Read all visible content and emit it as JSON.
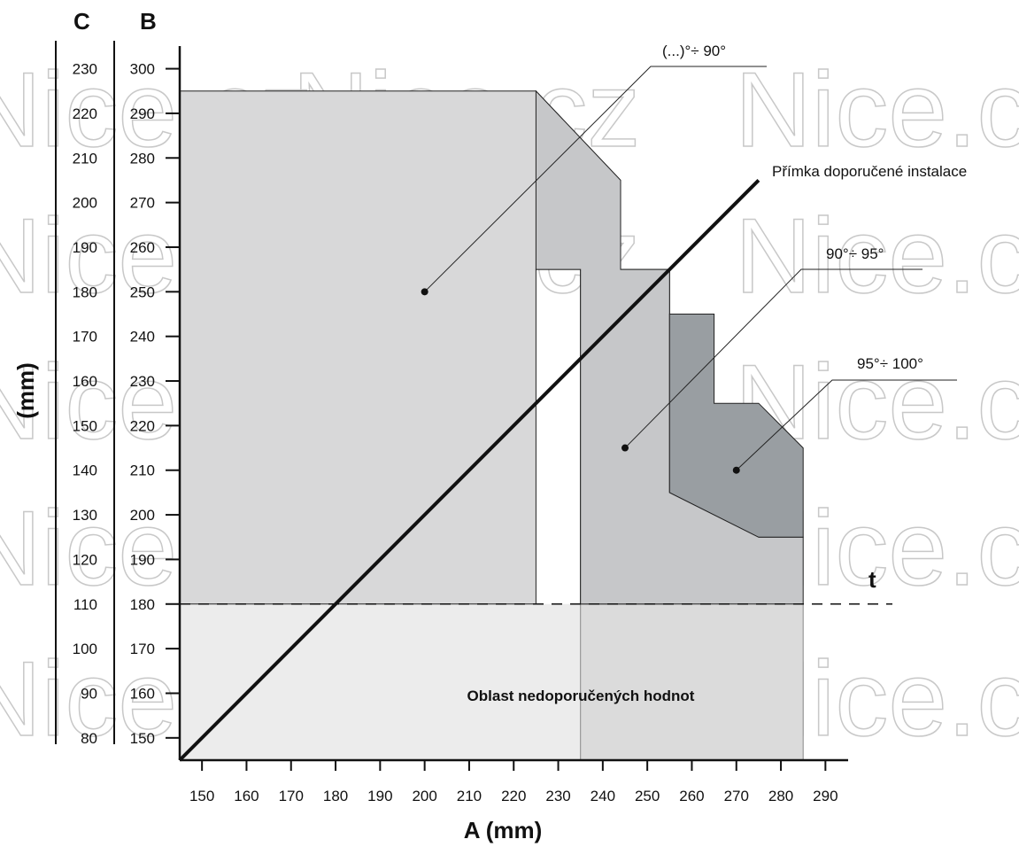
{
  "chart_data": {
    "type": "area",
    "xlabel": "A (mm)",
    "ylabel": "(mm)",
    "x_ticks": [
      150,
      160,
      170,
      180,
      190,
      200,
      210,
      220,
      230,
      240,
      250,
      260,
      270,
      280,
      290
    ],
    "xlim": [
      145,
      295
    ],
    "b_axis": {
      "label": "B",
      "ticks": [
        150,
        160,
        170,
        180,
        190,
        200,
        210,
        220,
        230,
        240,
        250,
        260,
        270,
        280,
        290,
        300
      ],
      "range": [
        145,
        300
      ]
    },
    "c_axis": {
      "label": "C",
      "ticks": [
        80,
        90,
        100,
        110,
        120,
        130,
        140,
        150,
        160,
        170,
        180,
        190,
        200,
        210,
        220,
        230
      ]
    },
    "regions": [
      {
        "name": "(...)°÷ 90°",
        "color": "#d8d8d9",
        "polygon": [
          [
            145,
            295
          ],
          [
            225,
            295
          ],
          [
            244,
            275
          ],
          [
            244,
            255
          ],
          [
            255,
            255
          ],
          [
            255,
            180
          ],
          [
            235,
            180
          ],
          [
            235,
            255
          ],
          [
            225,
            255
          ],
          [
            225,
            180
          ],
          [
            145,
            180
          ]
        ],
        "dot": [
          200,
          250
        ]
      },
      {
        "name": "90°÷ 95°",
        "color": "#c6c7c9",
        "polygon": [
          [
            225,
            295
          ],
          [
            244,
            275
          ],
          [
            244,
            255
          ],
          [
            255,
            255
          ],
          [
            255,
            205
          ],
          [
            275,
            195
          ],
          [
            285,
            195
          ],
          [
            285,
            180
          ],
          [
            235,
            180
          ],
          [
            235,
            255
          ],
          [
            225,
            255
          ]
        ],
        "dot": [
          245,
          215
        ]
      },
      {
        "name": "95°÷ 100°",
        "color": "#999ea2",
        "polygon": [
          [
            255,
            245
          ],
          [
            265,
            245
          ],
          [
            265,
            225
          ],
          [
            275,
            225
          ],
          [
            285,
            215
          ],
          [
            285,
            195
          ],
          [
            275,
            195
          ],
          [
            255,
            205
          ]
        ],
        "dot": [
          270,
          210
        ]
      }
    ],
    "not_recommended": {
      "label": "Oblast nedoporučených hodnot",
      "left_color": "#ececec",
      "right_color": "#dbdbdb",
      "split_x": 235,
      "x_range": [
        145,
        285
      ],
      "y_range": [
        145,
        180
      ]
    },
    "recommended_line": {
      "label": "Přímka doporučené instalace",
      "points": [
        [
          145,
          145
        ],
        [
          275,
          275
        ]
      ]
    },
    "threshold": {
      "label": "t",
      "y": 180
    }
  },
  "watermark": "Nice.cz"
}
